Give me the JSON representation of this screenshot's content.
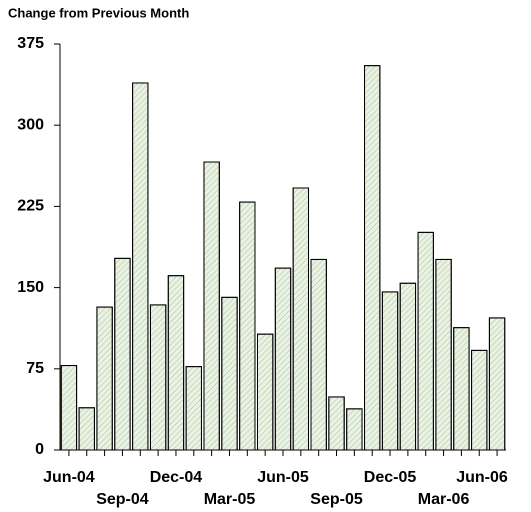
{
  "chart_data": {
    "type": "bar",
    "title": "Change from Previous Month",
    "categories": [
      "Jun-04",
      null,
      null,
      "Sep-04",
      null,
      null,
      "Dec-04",
      null,
      null,
      "Mar-05",
      null,
      null,
      "Jun-05",
      null,
      null,
      "Sep-05",
      null,
      null,
      "Dec-05",
      null,
      null,
      "Mar-06",
      null,
      null,
      "Jun-06"
    ],
    "values": [
      78,
      39,
      132,
      177,
      339,
      134,
      161,
      77,
      266,
      141,
      229,
      107,
      168,
      242,
      176,
      49,
      38,
      355,
      146,
      154,
      201,
      176,
      113,
      92,
      122
    ],
    "color": "#eaf3e3",
    "ylim": [
      0,
      375
    ],
    "yticks": [
      0,
      75,
      150,
      225,
      300,
      375
    ]
  }
}
